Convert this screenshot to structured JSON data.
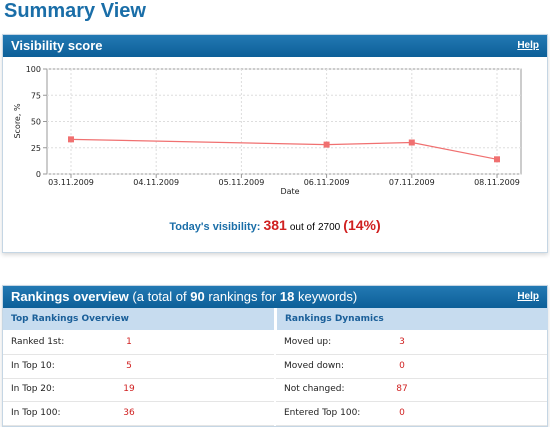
{
  "page": {
    "title": "Summary View"
  },
  "visibility_panel": {
    "title": "Visibility score",
    "help": "Help",
    "chart_data": {
      "type": "line",
      "xlabel": "Date",
      "ylabel": "Score, %",
      "xticks": [
        "03.11.2009",
        "04.11.2009",
        "05.11.2009",
        "06.11.2009",
        "07.11.2009",
        "08.11.2009"
      ],
      "x": [
        "03.11.2009",
        "06.11.2009",
        "07.11.2009",
        "08.11.2009"
      ],
      "series": [
        {
          "name": "Visibility score",
          "color": "#f07070",
          "values": [
            33,
            28,
            30,
            14
          ]
        }
      ],
      "ylim": [
        0,
        100
      ],
      "yticks": [
        0,
        25,
        50,
        75,
        100
      ],
      "grid": true
    },
    "today": {
      "label": "Today's visibility:",
      "score": 381,
      "out_of": "out of",
      "total": 2700,
      "percent": "(14%)"
    }
  },
  "rankings_panel": {
    "title": "Rankings overview",
    "summary_pre": "(a total of",
    "total_rankings": 90,
    "summary_mid": "rankings for",
    "keywords": 18,
    "summary_post": "keywords)",
    "help": "Help",
    "columns": [
      "Top Rankings Overview",
      "Rankings Dynamics"
    ],
    "left_rows": [
      [
        "Ranked 1st:",
        1
      ],
      [
        "In Top 10:",
        5
      ],
      [
        "In Top 20:",
        19
      ],
      [
        "In Top 100:",
        36
      ]
    ],
    "right_rows": [
      [
        "Moved up:",
        3
      ],
      [
        "Moved down:",
        0
      ],
      [
        "Not changed:",
        87
      ],
      [
        "Entered Top 100:",
        0
      ]
    ]
  }
}
